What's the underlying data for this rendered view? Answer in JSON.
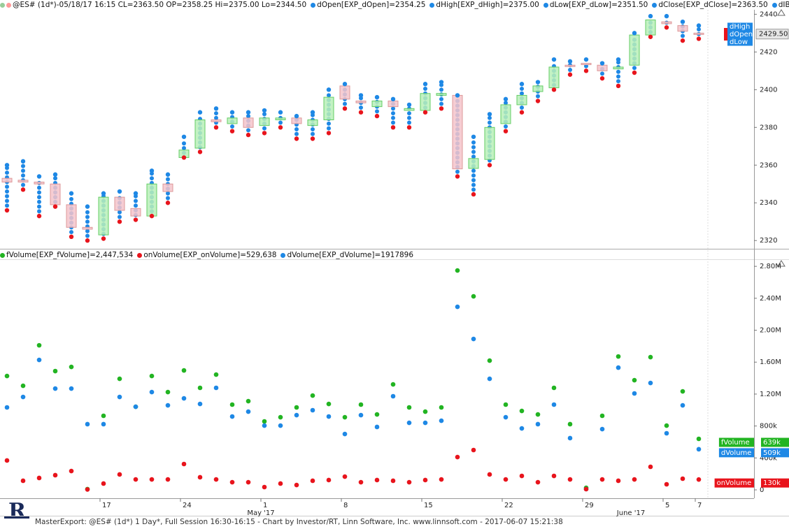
{
  "header": {
    "main": "@ES# (1d*)-05/18/17 16:15 CL=2363.50 OP=2358.25 Hi=2375.00 Lo=2344.50",
    "items": [
      "dOpen[EXP_dOpen]=2354.25",
      "dHigh[EXP_dHigh]=2375.00",
      "dLow[EXP_dLow]=2351.50",
      "dClose[EXP_dClose]=2363.50",
      "dIBL[EXP_dIBL]="
    ]
  },
  "volume_header": {
    "items": [
      "fVolume[EXP_fVolume]=2,447,534",
      "onVolume[EXP_onVolume]=529,638",
      "dVolume[EXP_dVolume]=1917896"
    ]
  },
  "footer": "MasterExport: @ES# (1d*) 1 Day*, Full Session 16:30-16:15 - Chart by Investor/RT, Linn Software, Inc. www.linnsoft.com - 2017-06-07 15:21:38",
  "chart_data": [
    {
      "type": "candlestick",
      "categories": [
        null,
        null,
        null,
        null,
        null,
        null,
        "17",
        null,
        null,
        null,
        null,
        "24",
        null,
        null,
        null,
        null,
        "1",
        null,
        null,
        null,
        null,
        "8",
        null,
        null,
        null,
        null,
        "15",
        null,
        null,
        null,
        null,
        "22",
        null,
        null,
        null,
        null,
        "29",
        null,
        null,
        null,
        null,
        "5",
        null,
        "7"
      ],
      "month_labels": [
        null,
        null,
        null,
        null,
        null,
        null,
        null,
        null,
        null,
        null,
        null,
        null,
        null,
        null,
        null,
        null,
        "May '17",
        null,
        null,
        null,
        null,
        null,
        null,
        null,
        null,
        null,
        null,
        null,
        null,
        null,
        null,
        null,
        null,
        null,
        null,
        null,
        null,
        null,
        null,
        "June '17",
        null,
        null,
        null,
        null
      ],
      "open": [
        2353,
        2352,
        2351,
        2350,
        2339,
        2327,
        2323,
        2343,
        2337,
        2333,
        2350,
        2364,
        2369,
        2384,
        2382,
        2385,
        2381,
        2384,
        2385,
        2381,
        2384,
        2402,
        2394,
        2391,
        2394,
        2389,
        2389,
        2397,
        2397,
        2358.25,
        2363,
        2382,
        2392,
        2399,
        2401,
        2413,
        2414,
        2413,
        2411,
        2413,
        2429,
        2436,
        2434,
        2430
      ],
      "high": [
        2360,
        2362,
        2354,
        2355,
        2345,
        2338,
        2345,
        2346,
        2345,
        2357,
        2355,
        2375,
        2388,
        2390,
        2388,
        2388,
        2389,
        2388,
        2386,
        2388,
        2400,
        2403,
        2397,
        2396,
        2395,
        2392,
        2403,
        2404,
        2397,
        2375,
        2387,
        2395,
        2403,
        2404,
        2416,
        2415,
        2416,
        2414,
        2416,
        2430,
        2439,
        2439,
        2436,
        2434
      ],
      "low": [
        2336,
        2347,
        2333,
        2338,
        2322,
        2320,
        2321,
        2330,
        2331,
        2333,
        2340,
        2364,
        2367,
        2380,
        2378,
        2376,
        2377,
        2380,
        2374,
        2374,
        2377,
        2390,
        2388,
        2386,
        2380,
        2380,
        2388,
        2390,
        2354,
        2344.5,
        2360,
        2378,
        2388,
        2394,
        2400,
        2408,
        2410,
        2406,
        2402,
        2409,
        2428,
        2433,
        2426,
        2427
      ],
      "close": [
        2351,
        2351,
        2350,
        2339,
        2327,
        2326,
        2343,
        2336,
        2333,
        2350,
        2346,
        2368,
        2384,
        2383,
        2385,
        2380,
        2385,
        2385,
        2382,
        2384,
        2396,
        2395,
        2393,
        2394,
        2391,
        2390,
        2398,
        2398,
        2358,
        2363.5,
        2380,
        2392,
        2397,
        2402,
        2412,
        2413,
        2414,
        2410,
        2412,
        2429,
        2437,
        2435,
        2431,
        2429.5
      ],
      "up_color": "#b8f0b8",
      "down_color": "#f5c4cb",
      "dot_color": "#1e88e5",
      "extreme_color": "#e8141c",
      "last_price_label": "2429.50",
      "tags": [
        "dHigh",
        "dOpen",
        "dLow"
      ],
      "ylim": [
        2316,
        2442
      ],
      "yticks": [
        2320,
        2340,
        2360,
        2380,
        2400,
        2420,
        2440
      ]
    },
    {
      "type": "scatter",
      "series": [
        {
          "name": "fVolume",
          "color": "#22b422",
          "last_value_label": "639k",
          "values": [
            1426000,
            1304000,
            1811000,
            1488000,
            1540000,
            10000,
            928000,
            1391000,
            1041000,
            1426000,
            1225000,
            1496000,
            1278000,
            1444000,
            1068000,
            1111000,
            858000,
            910000,
            1033000,
            1181000,
            1076000,
            910000,
            1068000,
            945000,
            1321000,
            1033000,
            980000,
            1033000,
            2748000,
            2424000,
            1619000,
            1068000,
            989000,
            945000,
            1278000,
            823000,
            26000,
            928000,
            1671000,
            1374000,
            1663000,
            805000,
            1234000,
            639000
          ]
        },
        {
          "name": "dVolume",
          "color": "#1e88e5",
          "last_value_label": "509k",
          "values": [
            1033000,
            1164000,
            1628000,
            1269000,
            1269000,
            823000,
            823000,
            1164000,
            1041000,
            1225000,
            1059000,
            1146000,
            1076000,
            1278000,
            919000,
            980000,
            805000,
            805000,
            936000,
            998000,
            919000,
            700000,
            936000,
            788000,
            1173000,
            840000,
            840000,
            866000,
            2293000,
            1890000,
            1391000,
            910000,
            770000,
            823000,
            1068000,
            648000,
            10000,
            761000,
            1531000,
            1208000,
            1339000,
            709000,
            1059000,
            509000
          ]
        },
        {
          "name": "onVolume",
          "color": "#e8141c",
          "last_value_label": "130k",
          "values": [
            368000,
            114000,
            149000,
            184000,
            236000,
            5000,
            79000,
            193000,
            131000,
            131000,
            131000,
            324000,
            158000,
            131000,
            96000,
            96000,
            35000,
            79000,
            61000,
            114000,
            123000,
            166000,
            96000,
            123000,
            114000,
            96000,
            123000,
            131000,
            411000,
            499000,
            193000,
            131000,
            175000,
            96000,
            175000,
            131000,
            9000,
            131000,
            114000,
            131000,
            289000,
            70000,
            140000,
            130000
          ]
        }
      ],
      "ylim": [
        -105000,
        2880000
      ],
      "yticks": [
        0,
        {
          "value": 400000,
          "label": "400k"
        },
        {
          "value": 800000,
          "label": "800k"
        },
        {
          "value": 1200000,
          "label": "1.20M"
        },
        {
          "value": 1600000,
          "label": "1.60M"
        },
        {
          "value": 2000000,
          "label": "2.00M"
        },
        {
          "value": 2400000,
          "label": "2.40M"
        },
        {
          "value": 2800000,
          "label": "2.80M"
        }
      ]
    }
  ]
}
